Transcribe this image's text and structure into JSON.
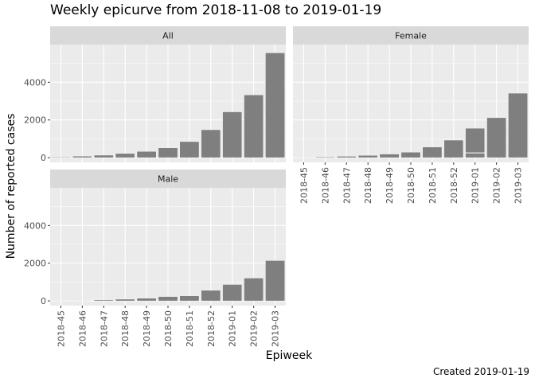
{
  "title": "Weekly epicurve from 2018-11-08 to 2019-01-19",
  "caption": "Created 2019-01-19",
  "colors": {
    "panel_bg": "#ebebeb",
    "strip_bg": "#d9d9d9",
    "bar": "#7f7f7f",
    "grid": "#ffffff",
    "axis_text": "#4d4d4d"
  },
  "chart_data": {
    "type": "bar",
    "xlabel": "Epiweek",
    "ylabel": "Number of reported cases",
    "categories": [
      "2018-45",
      "2018-46",
      "2018-47",
      "2018-48",
      "2018-49",
      "2018-50",
      "2018-51",
      "2018-52",
      "2019-01",
      "2019-02",
      "2019-03"
    ],
    "ylim": [
      -250,
      6000
    ],
    "yticks": [
      0,
      2000,
      4000
    ],
    "grid": true,
    "facets": [
      {
        "name": "All",
        "values": [
          30,
          80,
          130,
          220,
          330,
          520,
          850,
          1480,
          2430,
          3330,
          5560
        ]
      },
      {
        "name": "Female",
        "values": [
          10,
          40,
          70,
          120,
          190,
          290,
          560,
          930,
          1560,
          2120,
          3420
        ],
        "overlay_2019_01": 250
      },
      {
        "name": "Male",
        "values": [
          10,
          20,
          50,
          90,
          140,
          230,
          270,
          560,
          870,
          1210,
          2140
        ]
      }
    ]
  }
}
